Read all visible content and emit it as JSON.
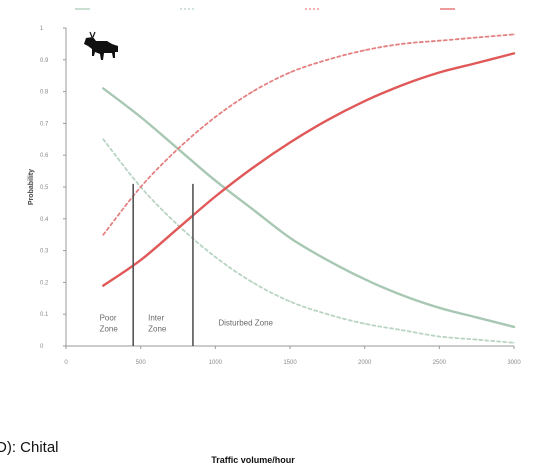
{
  "chart_data": {
    "type": "line",
    "title": "",
    "xlabel": "Traffic volume/hour",
    "ylabel": "Probability",
    "panel_caption": "D): Chital",
    "xlim": [
      0,
      3000
    ],
    "ylim": [
      0,
      1
    ],
    "x_ticks": [
      0,
      500,
      1000,
      1500,
      2000,
      2500,
      3000
    ],
    "x_tick_labels": [
      "0",
      "500",
      "1000",
      "1500",
      "2000",
      "2500",
      "3000"
    ],
    "y_ticks": [
      0,
      0.1,
      0.2,
      0.3,
      0.4,
      0.5,
      0.6,
      0.7,
      0.8,
      0.9,
      1
    ],
    "y_tick_labels": [
      "0",
      "0.1",
      "0.2",
      "0.3",
      "0.4",
      "0.5",
      "0.6",
      "0.7",
      "0.8",
      "0.9",
      "1"
    ],
    "grid": false,
    "legend_position": "top",
    "series": [
      {
        "name": "",
        "color": "#a8c8b4",
        "style": "solid",
        "x": [
          250,
          500,
          750,
          1000,
          1250,
          1500,
          1750,
          2000,
          2250,
          2500,
          2750,
          3000
        ],
        "y": [
          0.81,
          0.72,
          0.62,
          0.52,
          0.43,
          0.34,
          0.27,
          0.21,
          0.16,
          0.12,
          0.09,
          0.06
        ]
      },
      {
        "name": "",
        "color": "#b8d4c2",
        "style": "dashed",
        "x": [
          250,
          500,
          750,
          1000,
          1250,
          1500,
          1750,
          2000,
          2250,
          2500,
          2750,
          3000
        ],
        "y": [
          0.65,
          0.5,
          0.38,
          0.28,
          0.2,
          0.14,
          0.1,
          0.07,
          0.05,
          0.03,
          0.02,
          0.01
        ]
      },
      {
        "name": "",
        "color": "#e48080",
        "style": "dashed",
        "x": [
          250,
          500,
          750,
          1000,
          1250,
          1500,
          1750,
          2000,
          2250,
          2500,
          2750,
          3000
        ],
        "y": [
          0.35,
          0.5,
          0.62,
          0.72,
          0.8,
          0.86,
          0.9,
          0.93,
          0.95,
          0.96,
          0.97,
          0.98
        ]
      },
      {
        "name": "",
        "color": "#e05858",
        "style": "solid",
        "x": [
          250,
          500,
          750,
          1000,
          1250,
          1500,
          1750,
          2000,
          2250,
          2500,
          2750,
          3000
        ],
        "y": [
          0.19,
          0.27,
          0.37,
          0.47,
          0.56,
          0.64,
          0.71,
          0.77,
          0.82,
          0.86,
          0.89,
          0.92
        ]
      }
    ],
    "thresholds": [
      {
        "x": 450,
        "y_top": 0.51
      },
      {
        "x": 850,
        "y_top": 0.51
      }
    ],
    "zone_labels": [
      {
        "lines": [
          "Poor",
          "Zone"
        ],
        "x": 225,
        "y": 0.065
      },
      {
        "lines": [
          "Inter",
          "Zone"
        ],
        "x": 550,
        "y": 0.065
      },
      {
        "lines": [
          "Disturbed Zone"
        ],
        "x": 1020,
        "y": 0.065
      }
    ]
  }
}
